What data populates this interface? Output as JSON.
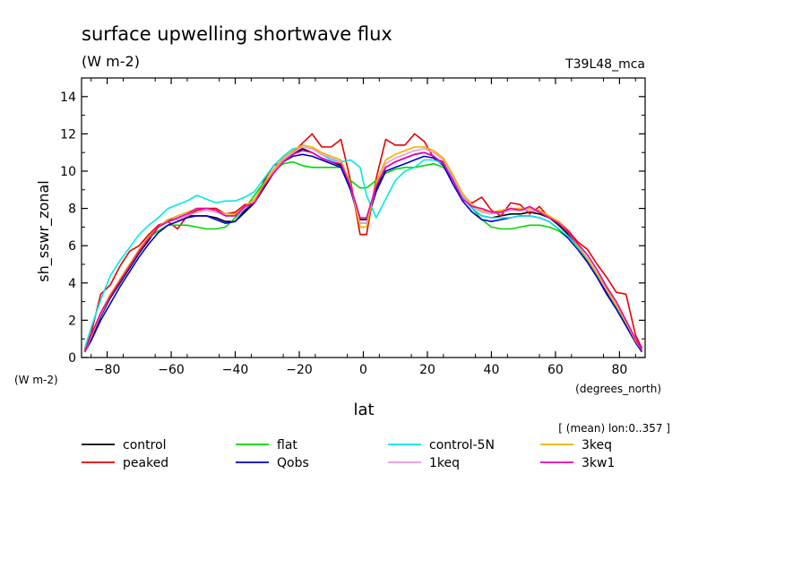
{
  "chart_data": {
    "type": "line",
    "title": "surface upwelling shortwave flux",
    "units": "(W m-2)",
    "model_label": "T39L48_mca",
    "ylabel": "sh_sswr_zonal",
    "y_units_label": "(W m-2)",
    "xlabel": "lat",
    "x_units_label": "(degrees_north)",
    "lon_note": "[ (mean) lon:0..357 ]",
    "xlim": [
      -88,
      88
    ],
    "ylim": [
      0,
      15
    ],
    "xticks": [
      -80,
      -60,
      -40,
      -20,
      0,
      20,
      40,
      60,
      80
    ],
    "yticks": [
      0,
      2,
      4,
      6,
      8,
      10,
      12,
      14
    ],
    "grid": false,
    "legend_position": "bottom",
    "x": [
      -87,
      -85,
      -82,
      -79,
      -76,
      -73,
      -70,
      -67,
      -64,
      -61,
      -58,
      -55,
      -52,
      -49,
      -46,
      -43,
      -40,
      -37,
      -34,
      -31,
      -28,
      -25,
      -22,
      -19,
      -16,
      -13,
      -10,
      -7,
      -4,
      -1,
      1,
      4,
      7,
      10,
      13,
      16,
      19,
      22,
      25,
      28,
      31,
      34,
      37,
      40,
      43,
      46,
      49,
      52,
      55,
      58,
      61,
      64,
      67,
      70,
      73,
      76,
      79,
      82,
      85,
      87
    ],
    "series": [
      {
        "name": "control",
        "color": "#000000",
        "values": [
          0.3,
          1.0,
          2.2,
          3.2,
          4.0,
          4.8,
          5.6,
          6.3,
          7.0,
          7.4,
          7.4,
          7.6,
          7.6,
          7.6,
          7.5,
          7.3,
          7.3,
          7.8,
          8.3,
          9.1,
          9.9,
          10.5,
          10.9,
          11.2,
          11.0,
          10.7,
          10.5,
          10.3,
          9.0,
          7.4,
          7.4,
          9.0,
          10.2,
          10.5,
          10.7,
          10.9,
          11.0,
          10.8,
          10.4,
          9.5,
          8.6,
          8.0,
          7.6,
          7.5,
          7.6,
          7.7,
          7.7,
          7.8,
          7.7,
          7.5,
          7.1,
          6.6,
          5.9,
          5.2,
          4.4,
          3.5,
          2.7,
          1.8,
          0.9,
          0.4
        ]
      },
      {
        "name": "peaked",
        "color": "#e80000",
        "values": [
          0.4,
          1.3,
          3.4,
          3.9,
          4.9,
          5.7,
          6.0,
          6.6,
          7.1,
          7.3,
          6.9,
          7.6,
          7.9,
          8.0,
          8.0,
          7.7,
          7.8,
          8.2,
          8.3,
          9.5,
          10.3,
          10.5,
          11.0,
          11.5,
          12.0,
          11.3,
          11.3,
          11.7,
          9.5,
          6.6,
          6.6,
          9.6,
          11.7,
          11.4,
          11.4,
          12.0,
          11.6,
          10.7,
          10.5,
          9.5,
          8.5,
          8.3,
          8.6,
          7.9,
          7.6,
          8.3,
          8.2,
          7.7,
          8.1,
          7.5,
          7.3,
          6.8,
          6.2,
          5.8,
          5.0,
          4.3,
          3.5,
          3.4,
          1.2,
          0.5
        ]
      },
      {
        "name": "flat",
        "color": "#00d800",
        "values": [
          0.3,
          1.1,
          2.3,
          3.3,
          4.2,
          5.0,
          5.8,
          6.4,
          6.8,
          7.1,
          7.1,
          7.1,
          7.0,
          6.9,
          6.9,
          7.0,
          7.5,
          8.0,
          8.7,
          9.4,
          10.0,
          10.4,
          10.5,
          10.3,
          10.2,
          10.2,
          10.2,
          10.2,
          9.5,
          9.1,
          9.1,
          9.5,
          9.9,
          10.1,
          10.2,
          10.2,
          10.3,
          10.4,
          10.2,
          9.6,
          8.8,
          8.0,
          7.4,
          7.0,
          6.9,
          6.9,
          7.0,
          7.1,
          7.1,
          7.0,
          6.8,
          6.4,
          5.8,
          5.2,
          4.4,
          3.6,
          2.7,
          1.8,
          0.9,
          0.4
        ]
      },
      {
        "name": "Qobs",
        "color": "#0000cc",
        "values": [
          0.3,
          0.9,
          2.0,
          2.9,
          3.8,
          4.6,
          5.4,
          6.1,
          6.7,
          7.1,
          7.3,
          7.5,
          7.6,
          7.6,
          7.4,
          7.2,
          7.3,
          7.9,
          8.4,
          9.2,
          10.0,
          10.5,
          10.8,
          10.9,
          10.8,
          10.6,
          10.4,
          10.2,
          9.0,
          7.2,
          7.2,
          8.9,
          10.0,
          10.2,
          10.4,
          10.6,
          10.8,
          10.7,
          10.3,
          9.3,
          8.4,
          7.8,
          7.4,
          7.3,
          7.4,
          7.5,
          7.6,
          7.6,
          7.5,
          7.3,
          6.9,
          6.4,
          5.8,
          5.1,
          4.3,
          3.4,
          2.6,
          1.7,
          0.8,
          0.3
        ]
      },
      {
        "name": "control-5N",
        "color": "#00e8e8",
        "values": [
          0.5,
          1.6,
          3.1,
          4.4,
          5.2,
          5.9,
          6.6,
          7.1,
          7.5,
          8.0,
          8.2,
          8.4,
          8.7,
          8.5,
          8.3,
          8.4,
          8.4,
          8.6,
          8.9,
          9.6,
          10.3,
          10.8,
          11.2,
          11.3,
          11.2,
          10.9,
          10.6,
          10.5,
          10.6,
          10.2,
          8.7,
          7.5,
          8.5,
          9.5,
          10.0,
          10.2,
          10.6,
          10.6,
          10.4,
          9.6,
          8.6,
          8.0,
          7.6,
          7.5,
          7.5,
          7.5,
          7.6,
          7.6,
          7.5,
          7.3,
          6.9,
          6.5,
          5.9,
          5.3,
          4.5,
          3.7,
          2.8,
          1.9,
          1.0,
          0.4
        ]
      },
      {
        "name": "1keq",
        "color": "#e898d8",
        "values": [
          0.3,
          1.1,
          2.3,
          3.3,
          4.1,
          4.9,
          5.7,
          6.4,
          7.0,
          7.3,
          7.4,
          7.6,
          7.8,
          7.9,
          7.8,
          7.6,
          7.6,
          8.0,
          8.4,
          9.2,
          10.0,
          10.6,
          11.0,
          11.3,
          11.2,
          10.9,
          10.7,
          10.5,
          9.2,
          7.2,
          7.2,
          9.2,
          10.4,
          10.7,
          10.9,
          11.1,
          11.2,
          11.0,
          10.6,
          9.7,
          8.7,
          8.1,
          7.8,
          7.7,
          7.8,
          7.9,
          7.9,
          7.9,
          7.8,
          7.5,
          7.2,
          6.7,
          6.0,
          5.3,
          4.5,
          3.6,
          2.8,
          1.9,
          0.9,
          0.4
        ]
      },
      {
        "name": "3keq",
        "color": "#f0b000",
        "values": [
          0.3,
          1.1,
          2.4,
          3.4,
          4.2,
          5.0,
          5.8,
          6.5,
          7.0,
          7.4,
          7.6,
          7.8,
          8.0,
          8.0,
          7.9,
          7.7,
          7.7,
          8.1,
          8.5,
          9.3,
          10.1,
          10.7,
          11.1,
          11.4,
          11.3,
          11.0,
          10.8,
          10.6,
          9.3,
          7.0,
          7.0,
          9.4,
          10.6,
          10.9,
          11.1,
          11.3,
          11.3,
          11.1,
          10.7,
          9.8,
          8.8,
          8.2,
          7.9,
          7.8,
          7.9,
          8.0,
          8.0,
          8.0,
          7.9,
          7.6,
          7.3,
          6.7,
          6.0,
          5.3,
          4.5,
          3.7,
          2.8,
          1.9,
          0.9,
          0.4
        ]
      },
      {
        "name": "3kw1",
        "color": "#e800b8",
        "values": [
          0.3,
          1.2,
          2.4,
          3.3,
          4.1,
          4.9,
          5.7,
          6.4,
          7.0,
          7.3,
          7.5,
          7.7,
          8.0,
          8.0,
          7.9,
          7.6,
          7.6,
          8.1,
          8.3,
          9.2,
          9.9,
          10.5,
          10.9,
          11.1,
          11.0,
          10.7,
          10.5,
          10.4,
          9.2,
          7.5,
          7.5,
          9.2,
          10.2,
          10.5,
          10.7,
          10.9,
          11.0,
          10.8,
          10.4,
          9.5,
          8.5,
          8.1,
          8.0,
          7.8,
          7.8,
          8.0,
          7.9,
          8.1,
          7.8,
          7.5,
          7.2,
          6.7,
          6.1,
          5.5,
          4.7,
          3.8,
          3.0,
          2.0,
          1.0,
          0.4
        ]
      }
    ]
  }
}
